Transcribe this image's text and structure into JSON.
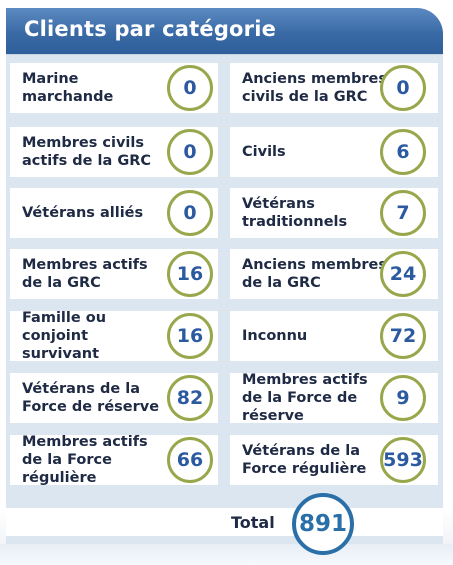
{
  "title": "Clients par catégorie",
  "rows": [
    [
      {
        "label": "Marine marchande",
        "value": "0"
      },
      {
        "label": "Anciens membres civils de la GRC",
        "value": "0"
      }
    ],
    [
      {
        "label": "Membres civils actifs de la GRC",
        "value": "0"
      },
      {
        "label": "Civils",
        "value": "6"
      }
    ],
    [
      {
        "label": "Vétérans alliés",
        "value": "0"
      },
      {
        "label": "Vétérans traditionnels",
        "value": "7"
      }
    ],
    [
      {
        "label": "Membres actifs de la GRC",
        "value": "16"
      },
      {
        "label": "Anciens membres de la GRC",
        "value": "24"
      }
    ],
    [
      {
        "label": "Famille ou conjoint survivant",
        "value": "16"
      },
      {
        "label": "Inconnu",
        "value": "72"
      }
    ],
    [
      {
        "label": "Vétérans de la Force de réserve",
        "value": "82"
      },
      {
        "label": "Membres actifs de la Force de réserve",
        "value": "9"
      }
    ],
    [
      {
        "label": "Membres actifs de la Force régulière",
        "value": "66"
      },
      {
        "label": "Vétérans de la Force régulière",
        "value": "593"
      }
    ]
  ],
  "total": {
    "label": "Total",
    "value": "891"
  },
  "colors": {
    "header": "#3a6aa5",
    "circle_border": "#97a84c",
    "value_text": "#2c5aa0",
    "total_circle": "#2a6fa8"
  }
}
